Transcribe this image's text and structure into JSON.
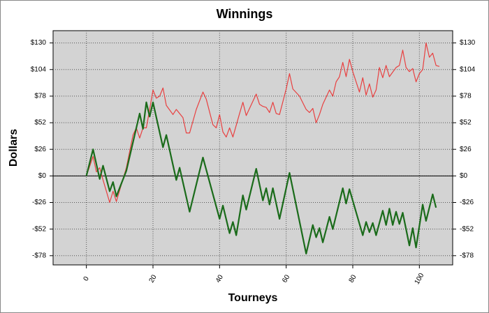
{
  "chart_data": {
    "type": "line",
    "title": "Winnings",
    "xlabel": "Tourneys",
    "ylabel": "Dollars",
    "xlim": [
      -10,
      110
    ],
    "ylim": [
      -87,
      142
    ],
    "xticks": [
      0,
      20,
      40,
      60,
      80,
      100
    ],
    "yticks": [
      {
        "value": -78,
        "label": "-$78"
      },
      {
        "value": -52,
        "label": "-$52"
      },
      {
        "value": -26,
        "label": "-$26"
      },
      {
        "value": 0,
        "label": "$0"
      },
      {
        "value": 26,
        "label": "$26"
      },
      {
        "value": 52,
        "label": "$52"
      },
      {
        "value": 78,
        "label": "$78"
      },
      {
        "value": 104,
        "label": "$104"
      },
      {
        "value": 130,
        "label": "$130"
      }
    ],
    "grid": true,
    "series": [
      {
        "color": "#e84040",
        "x": [
          0,
          2,
          3,
          4,
          5,
          7,
          8,
          9,
          12,
          14,
          15,
          16,
          17,
          18,
          19,
          20,
          21,
          22,
          23,
          24,
          26,
          27,
          29,
          30,
          31,
          33,
          35,
          36,
          38,
          39,
          40,
          41,
          42,
          43,
          44,
          46,
          47,
          48,
          50,
          51,
          52,
          53,
          54,
          55,
          56,
          57,
          58,
          60,
          61,
          62,
          64,
          66,
          67,
          68,
          69,
          70,
          71,
          73,
          74,
          75,
          76,
          77,
          78,
          79,
          80,
          82,
          83,
          84,
          85,
          86,
          87,
          88,
          89,
          90,
          91,
          93,
          94,
          95,
          96,
          97,
          98,
          99,
          100,
          101,
          102,
          103,
          104,
          105,
          106
        ],
        "values": [
          0,
          19,
          4,
          8,
          -4,
          -26,
          -15,
          -25,
          8,
          40,
          47,
          37,
          47,
          47,
          65,
          84,
          76,
          78,
          86,
          69,
          60,
          65,
          57,
          42,
          42,
          65,
          82,
          75,
          50,
          47,
          60,
          43,
          38,
          47,
          38,
          61,
          72,
          59,
          73,
          80,
          70,
          68,
          67,
          62,
          72,
          61,
          60,
          85,
          100,
          85,
          78,
          65,
          62,
          66,
          52,
          60,
          70,
          84,
          78,
          92,
          97,
          111,
          97,
          114,
          102,
          82,
          96,
          79,
          90,
          77,
          84,
          106,
          96,
          108,
          97,
          106,
          108,
          123,
          106,
          102,
          105,
          92,
          100,
          104,
          130,
          116,
          120,
          108,
          107
        ]
      },
      {
        "color": "#1a6b1a",
        "x": [
          0,
          2,
          4,
          5,
          7,
          8,
          9,
          12,
          16,
          17,
          18,
          19,
          20,
          23,
          24,
          27,
          28,
          31,
          35,
          40,
          41,
          43,
          44,
          45,
          47,
          48,
          51,
          53,
          54,
          55,
          56,
          58,
          61,
          66,
          68,
          69,
          70,
          71,
          73,
          74,
          77,
          78,
          79,
          83,
          84,
          85,
          86,
          87,
          89,
          90,
          91,
          92,
          93,
          94,
          95,
          97,
          98,
          99,
          101,
          102,
          104,
          105
        ],
        "values": [
          0,
          26,
          -3,
          10,
          -15,
          -6,
          -20,
          5,
          61,
          46,
          72,
          58,
          72,
          28,
          40,
          -4,
          8,
          -35,
          18,
          -42,
          -29,
          -56,
          -45,
          -58,
          -19,
          -33,
          7,
          -24,
          -12,
          -28,
          -12,
          -42,
          3,
          -76,
          -48,
          -60,
          -51,
          -65,
          -40,
          -52,
          -12,
          -27,
          -13,
          -58,
          -45,
          -55,
          -46,
          -58,
          -34,
          -48,
          -32,
          -48,
          -35,
          -47,
          -36,
          -68,
          -51,
          -70,
          -28,
          -44,
          -18,
          -31
        ]
      }
    ]
  }
}
